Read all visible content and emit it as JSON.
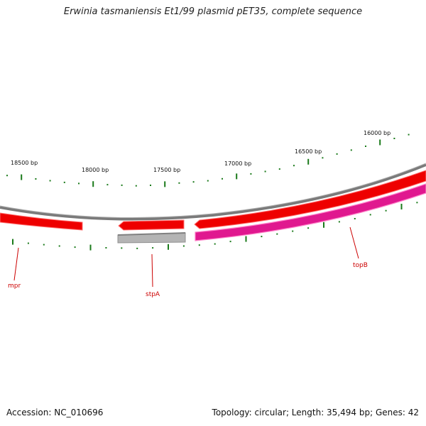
{
  "title": "Erwinia tasmaniensis Et1/99 plasmid pET35, complete sequence",
  "footer": {
    "accession": "Accession: NC_010696",
    "summary": "Topology: circular; Length: 35,494 bp; Genes: 42"
  },
  "ruler_labels": [
    {
      "bp": 18500,
      "text": "18500 bp"
    },
    {
      "bp": 18000,
      "text": "18000 bp"
    },
    {
      "bp": 17500,
      "text": "17500 bp"
    },
    {
      "bp": 17000,
      "text": "17000 bp"
    },
    {
      "bp": 16500,
      "text": "16500 bp"
    },
    {
      "bp": 16000,
      "text": "16000 bp"
    }
  ],
  "genes": [
    {
      "name": "mpr",
      "color": "#cc0000"
    },
    {
      "name": "stpA",
      "color": "#cc0000"
    },
    {
      "name": "topB",
      "color": "#cc0000"
    }
  ],
  "colors": {
    "forward_cds": "#ee0000",
    "forward_cds_edge": "#ff6666",
    "reverse_cds": "#e0188f",
    "reverse_cds_edge": "#ff80c8",
    "backbone": "#808080",
    "grey_feature": "#b4b4b4",
    "tick": "#1a7a1a"
  }
}
